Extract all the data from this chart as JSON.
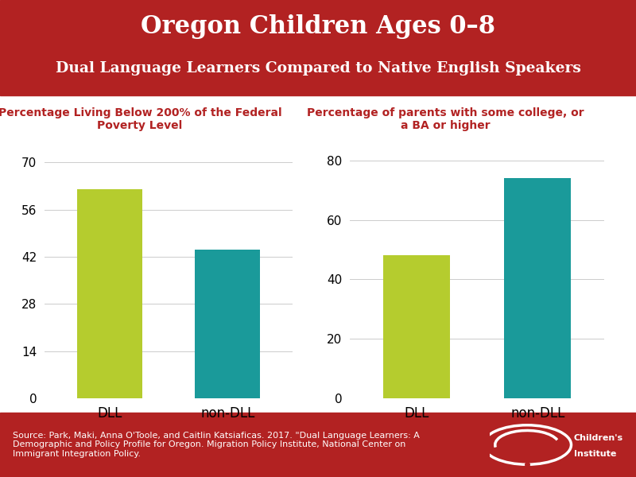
{
  "title_line1": "Oregon Children Ages 0–8",
  "title_line2": "Dual Language Learners Compared to Native English Speakers",
  "header_bg": "#b22222",
  "header_text_color": "#ffffff",
  "chart_bg": "#ffffff",
  "footer_bg": "#b22222",
  "footer_text_color": "#ffffff",
  "footer_text": "Source: Park, Maki, Anna O'Toole, and Caitlin Katsiaficas. 2017. \"Dual Language Learners: A\nDemographic and Policy Profile for Oregon. Migration Policy Institute, National Center on\nImmigrant Integration Policy.",
  "left_chart": {
    "title": "Percentage Living Below 200% of the Federal\nPoverty Level",
    "title_color": "#b22222",
    "categories": [
      "DLL",
      "non-DLL"
    ],
    "values": [
      62,
      44
    ],
    "colors": [
      "#b5cc2e",
      "#1a9a9a"
    ],
    "yticks": [
      0,
      14,
      28,
      42,
      56,
      70
    ],
    "ylim": [
      0,
      75
    ]
  },
  "right_chart": {
    "title": "Percentage of parents with some college, or\na BA or higher",
    "title_color": "#b22222",
    "categories": [
      "DLL",
      "non-DLL"
    ],
    "values": [
      48,
      74
    ],
    "colors": [
      "#b5cc2e",
      "#1a9a9a"
    ],
    "yticks": [
      0,
      20,
      40,
      60,
      80
    ],
    "ylim": [
      0,
      85
    ]
  }
}
